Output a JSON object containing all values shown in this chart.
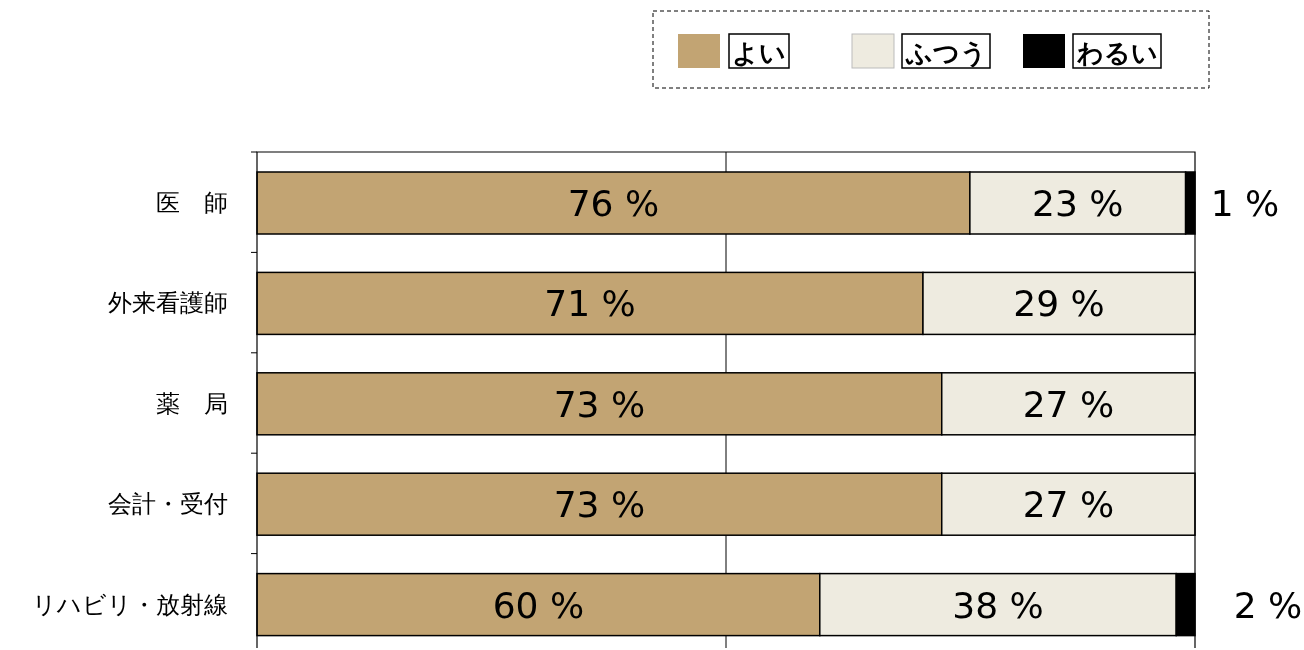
{
  "chart_data": {
    "type": "bar",
    "orientation": "horizontal",
    "stacked": true,
    "categories": [
      "医　師",
      "外来看護師",
      "薬　局",
      "会計・受付",
      "リハビリ・放射線"
    ],
    "series": [
      {
        "name": "よい",
        "color": "#c2a473",
        "values": [
          76,
          71,
          73,
          73,
          60
        ],
        "value_labels": [
          "76 %",
          "71 %",
          "73 %",
          "73 %",
          "60 %"
        ]
      },
      {
        "name": "ふつう",
        "color": "#eeebe0",
        "values": [
          23,
          29,
          27,
          27,
          38
        ],
        "value_labels": [
          "23 %",
          "29 %",
          "27 %",
          "27 %",
          "38 %"
        ]
      },
      {
        "name": "わるい",
        "color": "#000000",
        "values": [
          1,
          0,
          0,
          0,
          2
        ],
        "value_labels": [
          "1 %",
          null,
          null,
          null,
          "2 %"
        ]
      }
    ],
    "xlim": [
      0,
      100
    ],
    "ref_lines": [
      {
        "axis": "x",
        "value": 50,
        "color": "#000000"
      }
    ],
    "tick_labels": "y",
    "legend": "top right"
  }
}
